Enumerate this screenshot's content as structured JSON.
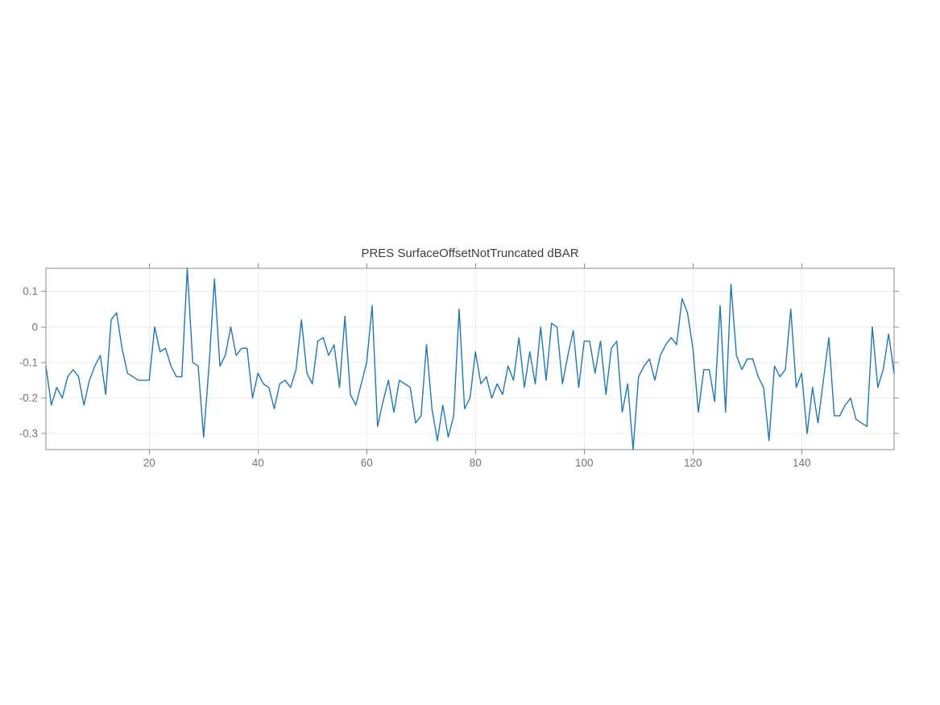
{
  "chart_data": {
    "type": "line",
    "title": "PRES SurfaceOffsetNotTruncated dBAR",
    "xlabel": "",
    "ylabel": "",
    "x_start": 1,
    "xlim": [
      1,
      157
    ],
    "ylim": [
      -0.345,
      0.165
    ],
    "x_ticks": [
      20,
      40,
      60,
      80,
      100,
      120,
      140
    ],
    "x_tick_labels": [
      "20",
      "40",
      "60",
      "80",
      "100",
      "120",
      "140"
    ],
    "y_ticks": [
      0.1,
      0,
      -0.1,
      -0.2,
      -0.3
    ],
    "y_tick_labels": [
      "0.1",
      "0",
      "-0.1",
      "-0.2",
      "-0.3"
    ],
    "grid": true,
    "legend": null,
    "line_color": "#1f77b4",
    "values": [
      -0.11,
      -0.22,
      -0.17,
      -0.2,
      -0.14,
      -0.12,
      -0.14,
      -0.22,
      -0.15,
      -0.11,
      -0.08,
      -0.19,
      0.02,
      0.04,
      -0.06,
      -0.13,
      -0.14,
      -0.15,
      -0.15,
      -0.15,
      0.0,
      -0.07,
      -0.06,
      -0.11,
      -0.14,
      -0.14,
      0.165,
      -0.1,
      -0.11,
      -0.31,
      -0.11,
      0.135,
      -0.11,
      -0.08,
      0.0,
      -0.08,
      -0.06,
      -0.06,
      -0.2,
      -0.13,
      -0.16,
      -0.17,
      -0.23,
      -0.16,
      -0.15,
      -0.17,
      -0.12,
      0.02,
      -0.13,
      -0.16,
      -0.04,
      -0.03,
      -0.08,
      -0.05,
      -0.17,
      0.03,
      -0.19,
      -0.22,
      -0.16,
      -0.1,
      0.06,
      -0.28,
      -0.21,
      -0.15,
      -0.24,
      -0.15,
      -0.16,
      -0.17,
      -0.27,
      -0.25,
      -0.05,
      -0.23,
      -0.32,
      -0.22,
      -0.31,
      -0.25,
      0.05,
      -0.23,
      -0.2,
      -0.07,
      -0.16,
      -0.14,
      -0.2,
      -0.16,
      -0.19,
      -0.11,
      -0.15,
      -0.03,
      -0.17,
      -0.07,
      -0.16,
      0.0,
      -0.15,
      0.01,
      0.0,
      -0.16,
      -0.08,
      -0.01,
      -0.17,
      -0.04,
      -0.04,
      -0.13,
      -0.04,
      -0.19,
      -0.06,
      -0.04,
      -0.24,
      -0.16,
      -0.345,
      -0.14,
      -0.11,
      -0.09,
      -0.15,
      -0.08,
      -0.05,
      -0.03,
      -0.05,
      0.08,
      0.04,
      -0.06,
      -0.24,
      -0.12,
      -0.12,
      -0.21,
      0.06,
      -0.24,
      0.12,
      -0.08,
      -0.12,
      -0.09,
      -0.09,
      -0.14,
      -0.17,
      -0.32,
      -0.11,
      -0.14,
      -0.12,
      0.05,
      -0.17,
      -0.13,
      -0.3,
      -0.17,
      -0.27,
      -0.15,
      -0.03,
      -0.25,
      -0.25,
      -0.22,
      -0.2,
      -0.26,
      -0.27,
      -0.28,
      0.0,
      -0.17,
      -0.12,
      -0.02,
      -0.13
    ]
  },
  "colors": {
    "background": "#ffffff",
    "grid": "#ebebeb",
    "axis": "#8c8c8c",
    "tick_label": "#757575",
    "title": "#3d3d3d",
    "line": "#1f77b4"
  },
  "style": {
    "tick_font_size": "13.5px",
    "tick_length": 6
  }
}
